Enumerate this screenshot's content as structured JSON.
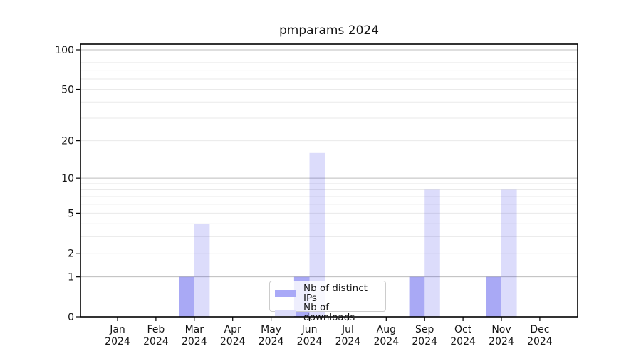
{
  "title": "pmparams 2024",
  "chart_data": {
    "type": "bar",
    "title": "pmparams 2024",
    "categories": [
      "Jan",
      "Feb",
      "Mar",
      "Apr",
      "May",
      "Jun",
      "Jul",
      "Aug",
      "Sep",
      "Oct",
      "Nov",
      "Dec"
    ],
    "category_year": "2024",
    "series": [
      {
        "name": "Nb of distinct IPs",
        "color": "#a9a9f7",
        "base_color": "#0505e1",
        "opacity": 0.345,
        "values": [
          0,
          0,
          1,
          0,
          0,
          1,
          0,
          0,
          1,
          0,
          1,
          0
        ]
      },
      {
        "name": "Nb of downloads",
        "color": "#dcdcfa",
        "base_color": "#0505e1",
        "opacity": 0.14,
        "values": [
          0,
          0,
          4,
          0,
          0,
          16,
          0,
          0,
          8,
          0,
          8,
          0
        ]
      }
    ],
    "yscale": "log1p",
    "ylim": [
      0,
      110
    ],
    "yticks": [
      0,
      1,
      2,
      5,
      10,
      20,
      50,
      100
    ],
    "major_gridlines": [
      1,
      10,
      100
    ],
    "minor_gridlines": [
      2,
      3,
      4,
      5,
      6,
      7,
      8,
      9,
      20,
      30,
      40,
      50,
      60,
      70,
      80,
      90
    ],
    "grid": true,
    "legend_position": "lower center",
    "colors": {
      "grid_major": "#bdbdbd",
      "grid_minor": "#eaeaea",
      "axis": "#000000",
      "background": "#ffffff",
      "text": "#141414"
    }
  }
}
